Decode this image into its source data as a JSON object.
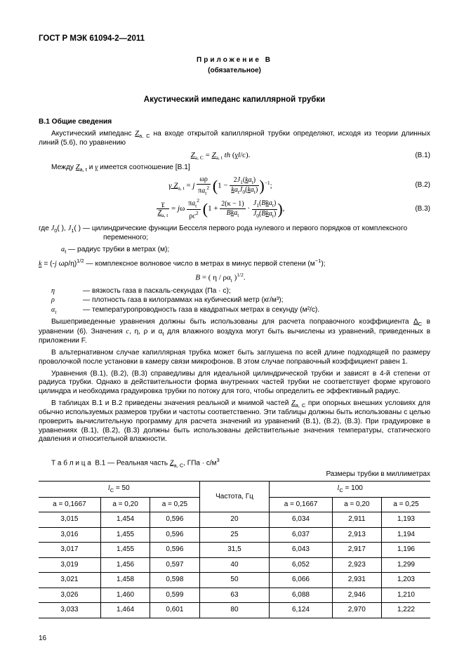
{
  "header": "ГОСТ Р МЭК 61094-2—2011",
  "annex": "Приложение  В",
  "annex_sub": "(обязательное)",
  "title": "Акустический импеданс капиллярной трубки",
  "sec1": "B.1  Общие сведения",
  "p1": "Акустический импеданс Z_a, C на входе открытой капиллярной трубки определяют, исходя из теории длинных линий (5.6), по уравнению",
  "eq1_num": "(B.1)",
  "p2": "Между Z_a, t и γ имеется соотношение [В.1]",
  "eq2_num": "(B.2)",
  "eq3_num": "(B.3)",
  "where_intro_a": "где J₀( ), J₁( ) — цилиндрические функции Бесселя первого рода нулевого и первого порядков от комплексного переменного;",
  "where_at": "aₜ — радиус трубки в метрах (м);",
  "where_k": "k = (-j ωρ/η)^{1/2} — комплексное волновое число в метрах в минус первой степени (м⁻¹);",
  "eqB": "B = ( η / ρα_t )^{1/2}.",
  "def_eta_sym": "η",
  "def_eta": "— вязкость газа в паскаль-секундах (Па · с);",
  "def_rho_sym": "ρ",
  "def_rho": "— плотность газа в килограммах на кубический метр (кг/м³);",
  "def_at_sym": "α_t",
  "def_at": "— температуропроводность газа в квадратных метрах в секунду (м²/с).",
  "p3": "Вышеприведенные уравнения должны быть использованы для расчета поправочного коэффициента Δ_C в уравнении (6). Значения c, η, ρ и α_t для влажного воздуха могут быть вычислены из уравнений, приведенных в приложении F.",
  "p4": "В альтернативном случае капиллярная трубка может быть заглушена по всей длине подходящей по размеру проволочкой после установки в камеру связи микрофонов. В этом случае поправочный коэффициент равен 1.",
  "p5": "Уравнения (В.1), (В.2), (В.3) справедливы для идеальной цилиндрической трубки и зависят в 4-й степени от радиуса трубки. Однако в действительности форма внутренних частей трубки не соответствует форме кругового цилиндра и необходима градуировка трубки по потоку для того, чтобы определить ее эффективный радиус.",
  "p6": "В таблицах B.1 и В.2 приведены значения реальной и мнимой частей Z_a, C при опорных внешних условиях для обычно используемых размеров трубки и частоты соответственно. Эти таблицы должны быть использованы с целью проверить вычислительную программу для расчета значений из уравнений (В.1), (В.2), (В.3). При градуировке в уравнениях (В.1), (В.2), (В.3) должны быть использованы действительные значения температуры, статического давления и относительной влажности.",
  "table_caption": "Т а б л и ц а  В.1 — Реальная часть Z_a, C, ГПа · с/м³",
  "table_units": "Размеры трубки в миллиметрах",
  "table": {
    "lc50": "l_C = 50",
    "lc100": "l_C = 100",
    "freq": "Частота, Гц",
    "cols": [
      "a = 0,1667",
      "a = 0,20",
      "a = 0,25",
      "a = 0,1667",
      "a = 0,20",
      "a = 0,25"
    ],
    "rows": [
      {
        "f": "20",
        "l": [
          "3,015",
          "1,454",
          "0,596"
        ],
        "r": [
          "6,034",
          "2,911",
          "1,193"
        ]
      },
      {
        "f": "25",
        "l": [
          "3,016",
          "1,455",
          "0,596"
        ],
        "r": [
          "6,037",
          "2,913",
          "1,194"
        ]
      },
      {
        "f": "31,5",
        "l": [
          "3,017",
          "1,455",
          "0,596"
        ],
        "r": [
          "6,043",
          "2,917",
          "1,196"
        ]
      },
      {
        "f": "40",
        "l": [
          "3,019",
          "1,456",
          "0,597"
        ],
        "r": [
          "6,052",
          "2,923",
          "1,299"
        ]
      },
      {
        "f": "50",
        "l": [
          "3,021",
          "1,458",
          "0,598"
        ],
        "r": [
          "6,066",
          "2,931",
          "1,203"
        ]
      },
      {
        "f": "63",
        "l": [
          "3,026",
          "1,460",
          "0,599"
        ],
        "r": [
          "6,088",
          "2,946",
          "1,210"
        ]
      },
      {
        "f": "80",
        "l": [
          "3,033",
          "1,464",
          "0,601"
        ],
        "r": [
          "6,124",
          "2,970",
          "1,222"
        ]
      }
    ]
  },
  "pagenum": "16"
}
